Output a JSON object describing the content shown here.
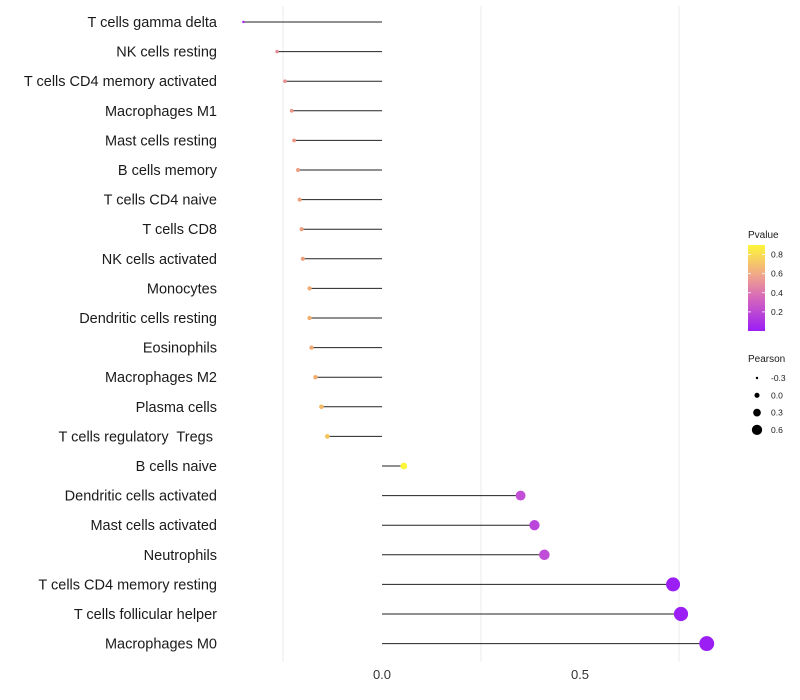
{
  "chart_data": {
    "type": "lollipop",
    "title": "",
    "xlabel": "",
    "ylabel": "",
    "xlim": [
      -0.4,
      0.85
    ],
    "xticks": [
      0.0,
      0.5
    ],
    "xtick_labels": [
      "0.0",
      "0.5"
    ],
    "grid": "vertical",
    "categories": [
      "T cells gamma delta",
      "NK cells resting",
      "T cells CD4 memory activated",
      "Macrophages M1",
      "Mast cells resting",
      "B cells memory",
      "T cells CD4 naive",
      "T cells CD8",
      "NK cells activated",
      "Monocytes",
      "Dendritic cells resting",
      "Eosinophils",
      "Macrophages M2",
      "Plasma cells",
      "T cells regulatory  Tregs ",
      "B cells naive",
      "Dendritic cells activated",
      "Mast cells activated",
      "Neutrophils",
      "T cells CD4 memory resting",
      "T cells follicular helper",
      "Macrophages M0"
    ],
    "pearson": [
      -0.35,
      -0.265,
      -0.245,
      -0.228,
      -0.222,
      -0.212,
      -0.208,
      -0.203,
      -0.2,
      -0.183,
      -0.183,
      -0.178,
      -0.168,
      -0.153,
      -0.138,
      0.055,
      0.35,
      0.385,
      0.41,
      0.735,
      0.755,
      0.82
    ],
    "pvalue": [
      0.02,
      0.38,
      0.4,
      0.44,
      0.45,
      0.48,
      0.5,
      0.5,
      0.5,
      0.56,
      0.58,
      0.55,
      0.58,
      0.64,
      0.68,
      0.9,
      0.15,
      0.12,
      0.14,
      0.0001,
      0.0001,
      0.0001
    ],
    "color_legend": {
      "title": "Pvalue",
      "ticks": [
        "0.8",
        "0.6",
        "0.4",
        "0.2"
      ],
      "tick_values": [
        0.8,
        0.6,
        0.4,
        0.2
      ],
      "range": [
        0.0,
        0.9
      ],
      "colors": {
        "high": "#fdf63a",
        "mid": "#eb8f8f",
        "low": "#9b1ef5"
      }
    },
    "size_legend": {
      "title": "Pearson",
      "labels": [
        "-0.3",
        "0.0",
        "0.3",
        "0.6"
      ],
      "values": [
        -0.3,
        0.0,
        0.3,
        0.6
      ]
    },
    "legend_position": "right"
  }
}
